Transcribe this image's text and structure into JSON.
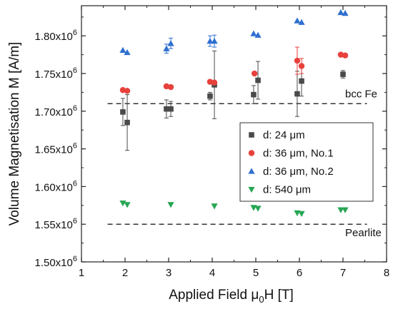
{
  "chart_data": {
    "type": "scatter",
    "xlabel_parts": [
      "Applied Field ",
      "μ",
      "0",
      "H [T]"
    ],
    "ylabel": "Volume Magnetisation M [A/m]",
    "xlim": [
      1,
      8
    ],
    "ylim": [
      1.5,
      1.84
    ],
    "x_ticks": [
      "1",
      "2",
      "3",
      "4",
      "5",
      "6",
      "7",
      "8"
    ],
    "y_ticks": [
      {
        "value": 1.5,
        "mantissa": "1.50x10",
        "exp": "6"
      },
      {
        "value": 1.55,
        "mantissa": "1.55x10",
        "exp": "6"
      },
      {
        "value": 1.6,
        "mantissa": "1.60x10",
        "exp": "6"
      },
      {
        "value": 1.65,
        "mantissa": "1.65x10",
        "exp": "6"
      },
      {
        "value": 1.7,
        "mantissa": "1.70x10",
        "exp": "6"
      },
      {
        "value": 1.75,
        "mantissa": "1.75x10",
        "exp": "6"
      },
      {
        "value": 1.8,
        "mantissa": "1.80x10",
        "exp": "6"
      }
    ],
    "value_unit": "x10^6 A/m",
    "reference_lines": [
      {
        "label": "bcc Fe",
        "y": 1.71
      },
      {
        "label": "Pearlite",
        "y": 1.55
      }
    ],
    "legend_position": "right",
    "series": [
      {
        "name": "d: 24 μm",
        "marker": "square",
        "color": "#4a4a4a",
        "points": [
          {
            "x": 1.95,
            "y": 1.699,
            "err": 0.018
          },
          {
            "x": 2.05,
            "y": 1.685,
            "err": 0.037
          },
          {
            "x": 2.95,
            "y": 1.703,
            "err": 0.012
          },
          {
            "x": 3.05,
            "y": 1.703,
            "err": 0.01
          },
          {
            "x": 3.95,
            "y": 1.72,
            "err": 0.005
          },
          {
            "x": 4.05,
            "y": 1.735,
            "err": 0.045
          },
          {
            "x": 4.95,
            "y": 1.722,
            "err": 0.012
          },
          {
            "x": 5.05,
            "y": 1.741,
            "err": 0.025
          },
          {
            "x": 5.95,
            "y": 1.723,
            "err": 0.03
          },
          {
            "x": 6.05,
            "y": 1.74,
            "err": 0.02
          },
          {
            "x": 7.0,
            "y": 1.749,
            "err": 0.005
          }
        ]
      },
      {
        "name": "d: 36 μm, No.1",
        "marker": "circle",
        "color": "#e8413c",
        "points": [
          {
            "x": 1.95,
            "y": 1.728
          },
          {
            "x": 2.05,
            "y": 1.727
          },
          {
            "x": 2.95,
            "y": 1.733
          },
          {
            "x": 3.05,
            "y": 1.732
          },
          {
            "x": 3.95,
            "y": 1.739
          },
          {
            "x": 4.05,
            "y": 1.738
          },
          {
            "x": 4.97,
            "y": 1.75
          },
          {
            "x": 5.95,
            "y": 1.767,
            "err": 0.018
          },
          {
            "x": 6.05,
            "y": 1.76,
            "err": 0.01
          },
          {
            "x": 6.95,
            "y": 1.775
          },
          {
            "x": 7.05,
            "y": 1.774
          }
        ]
      },
      {
        "name": "d: 36 μm, No.2",
        "marker": "triangle-up",
        "color": "#2f6fd0",
        "points": [
          {
            "x": 1.95,
            "y": 1.781
          },
          {
            "x": 2.05,
            "y": 1.778
          },
          {
            "x": 2.95,
            "y": 1.783,
            "err": 0.006
          },
          {
            "x": 3.05,
            "y": 1.79,
            "err": 0.007
          },
          {
            "x": 3.95,
            "y": 1.793,
            "err": 0.007
          },
          {
            "x": 4.05,
            "y": 1.793,
            "err": 0.008
          },
          {
            "x": 4.95,
            "y": 1.803
          },
          {
            "x": 5.05,
            "y": 1.801
          },
          {
            "x": 5.95,
            "y": 1.82
          },
          {
            "x": 6.05,
            "y": 1.818
          },
          {
            "x": 6.95,
            "y": 1.831
          },
          {
            "x": 7.05,
            "y": 1.83
          }
        ]
      },
      {
        "name": "d: 540 μm",
        "marker": "triangle-down",
        "color": "#27a653",
        "points": [
          {
            "x": 1.95,
            "y": 1.578
          },
          {
            "x": 2.05,
            "y": 1.576
          },
          {
            "x": 3.05,
            "y": 1.576
          },
          {
            "x": 4.05,
            "y": 1.574
          },
          {
            "x": 4.95,
            "y": 1.572
          },
          {
            "x": 5.05,
            "y": 1.571
          },
          {
            "x": 5.95,
            "y": 1.565
          },
          {
            "x": 6.05,
            "y": 1.564
          },
          {
            "x": 6.95,
            "y": 1.569
          },
          {
            "x": 7.05,
            "y": 1.569
          }
        ]
      }
    ]
  }
}
